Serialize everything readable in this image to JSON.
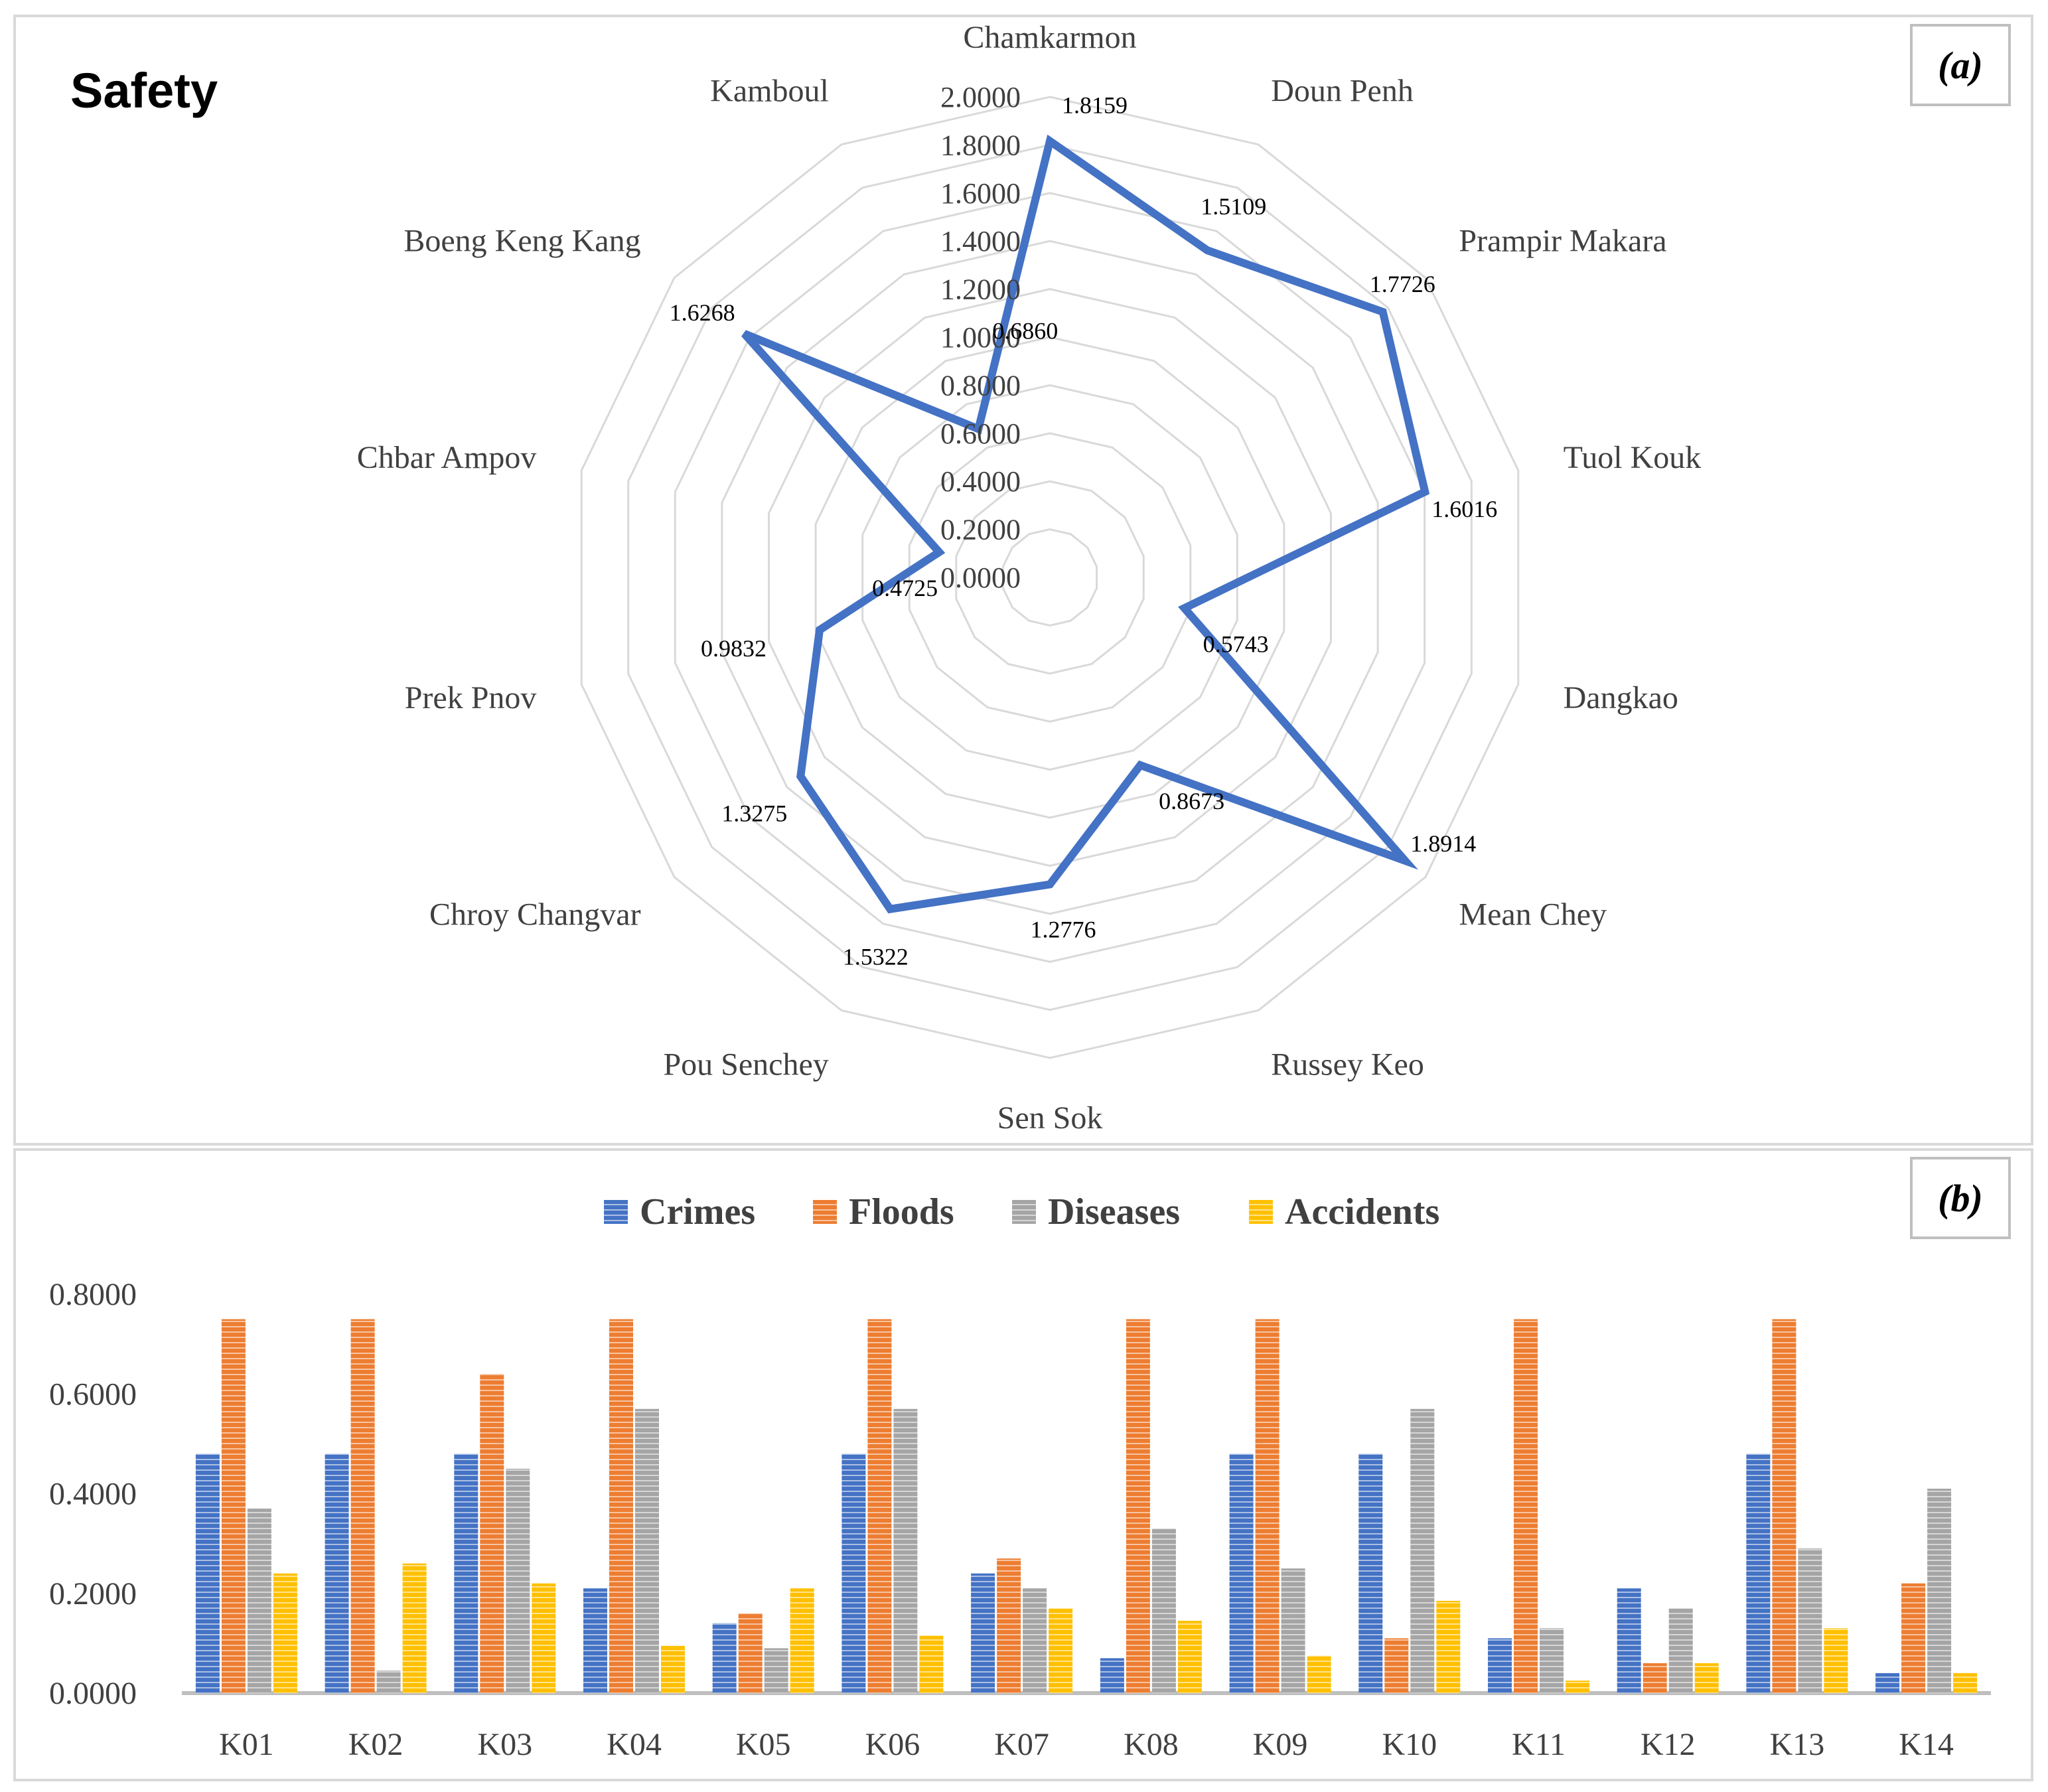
{
  "panel_a": {
    "label": "(a)",
    "chart_data": {
      "type": "radar",
      "title": "Safety",
      "categories": [
        "Chamkarmon",
        "Doun Penh",
        "Prampir Makara",
        "Tuol Kouk",
        "Dangkao",
        "Mean Chey",
        "Russey Keo",
        "Sen Sok",
        "Pou Senchey",
        "Chroy Changvar",
        "Prek Pnov",
        "Chbar Ampov",
        "Boeng Keng Kang",
        "Kamboul"
      ],
      "values": [
        1.8159,
        1.5109,
        1.7726,
        1.6016,
        0.5743,
        1.8914,
        0.8673,
        1.2776,
        1.5322,
        1.3275,
        0.9832,
        0.4725,
        1.6268,
        0.686
      ],
      "value_labels": [
        "1.8159",
        "1.5109",
        "1.7726",
        "1.6016",
        "0.5743",
        "1.8914",
        "0.8673",
        "1.2776",
        "1.5322",
        "1.3275",
        "0.9832",
        "0.4725",
        "1.6268",
        "0.6860"
      ],
      "rlim": [
        0,
        2
      ],
      "ticks": [
        0,
        0.2,
        0.4,
        0.6,
        0.8,
        1.0,
        1.2,
        1.4,
        1.6,
        1.8,
        2.0
      ],
      "tick_labels": [
        "0.0000",
        "0.2000",
        "0.4000",
        "0.6000",
        "0.8000",
        "1.0000",
        "1.2000",
        "1.4000",
        "1.6000",
        "1.8000",
        "2.0000"
      ],
      "series_color": "#4472C4",
      "grid_color": "#D9D9D9"
    }
  },
  "panel_b": {
    "label": "(b)",
    "chart_data": {
      "type": "bar",
      "title": "",
      "categories": [
        "K01",
        "K02",
        "K03",
        "K04",
        "K05",
        "K06",
        "K07",
        "K08",
        "K09",
        "K10",
        "K11",
        "K12",
        "K13",
        "K14"
      ],
      "series": [
        {
          "name": "Crimes",
          "color": "#4472C4",
          "values": [
            0.48,
            0.48,
            0.48,
            0.21,
            0.14,
            0.48,
            0.24,
            0.07,
            0.48,
            0.48,
            0.11,
            0.21,
            0.48,
            0.04
          ]
        },
        {
          "name": "Floods",
          "color": "#ED7D31",
          "values": [
            0.75,
            0.75,
            0.64,
            0.75,
            0.16,
            0.75,
            0.27,
            0.75,
            0.75,
            0.11,
            0.75,
            0.06,
            0.75,
            0.22
          ]
        },
        {
          "name": "Diseases",
          "color": "#A5A5A5",
          "values": [
            0.37,
            0.045,
            0.45,
            0.57,
            0.09,
            0.57,
            0.21,
            0.33,
            0.25,
            0.57,
            0.13,
            0.17,
            0.29,
            0.41
          ]
        },
        {
          "name": "Accidents",
          "color": "#FFC000",
          "values": [
            0.24,
            0.26,
            0.22,
            0.095,
            0.21,
            0.115,
            0.17,
            0.145,
            0.075,
            0.185,
            0.025,
            0.06,
            0.13,
            0.04
          ]
        }
      ],
      "ylim": [
        0,
        0.8
      ],
      "yticks": [
        0,
        0.2,
        0.4,
        0.6,
        0.8
      ],
      "ytick_labels": [
        "0.0000",
        "0.2000",
        "0.4000",
        "0.6000",
        "0.8000"
      ],
      "legend_position": "top-center",
      "xlabel": "",
      "ylabel": ""
    }
  }
}
